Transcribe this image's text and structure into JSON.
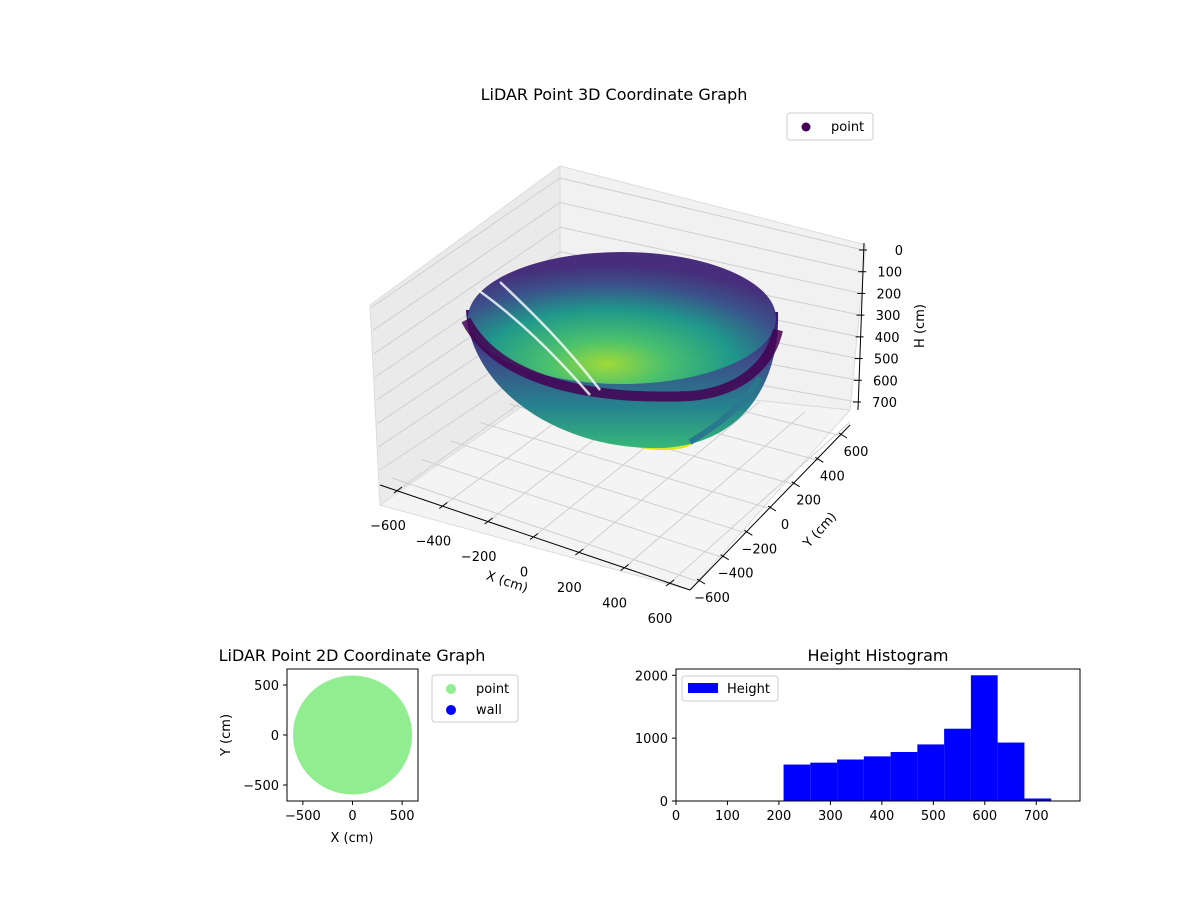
{
  "chart_data": [
    {
      "type": "scatter",
      "title": "LiDAR Point 3D Coordinate Graph",
      "projection": "3d",
      "xlabel": "X (cm)",
      "ylabel": "Y (cm)",
      "zlabel": "H (cm)",
      "x_ticks": [
        "−600",
        "−400",
        "−200",
        "0",
        "200",
        "400",
        "600"
      ],
      "y_ticks": [
        "600",
        "400",
        "200",
        "0",
        "−200",
        "−400",
        "−600"
      ],
      "z_ticks": [
        "0",
        "100",
        "200",
        "300",
        "400",
        "500",
        "600",
        "700"
      ],
      "xlim": [
        -650,
        650
      ],
      "ylim": [
        -650,
        650
      ],
      "zlim": [
        0,
        750
      ],
      "z_inverted": true,
      "grid": true,
      "legend": {
        "position": "top-right",
        "entries": [
          "point"
        ]
      },
      "colormap": "viridis",
      "series": [
        {
          "name": "point",
          "shape": "hemispherical bowl",
          "radius": 600,
          "max_height": 740,
          "color": "#440154"
        }
      ]
    },
    {
      "type": "scatter",
      "title": "LiDAR Point 2D Coordinate Graph",
      "xlabel": "X (cm)",
      "ylabel": "Y (cm)",
      "x_ticks": [
        "−500",
        "0",
        "500"
      ],
      "y_ticks": [
        "500",
        "0",
        "−500"
      ],
      "xlim": [
        -660,
        660
      ],
      "ylim": [
        -660,
        660
      ],
      "legend": {
        "position": "outside-right",
        "entries": [
          "point",
          "wall"
        ]
      },
      "series": [
        {
          "name": "point",
          "color": "#90ee90",
          "shape": "filled disk",
          "radius": 600
        },
        {
          "name": "wall",
          "color": "#0000ff",
          "values": []
        }
      ]
    },
    {
      "type": "bar",
      "title": "Height Histogram",
      "x_ticks": [
        "0",
        "100",
        "200",
        "300",
        "400",
        "500",
        "600",
        "700"
      ],
      "y_ticks": [
        "0",
        "1000",
        "2000"
      ],
      "xlim": [
        0,
        785
      ],
      "ylim": [
        0,
        2100
      ],
      "legend": {
        "position": "top-left",
        "entries": [
          "Height"
        ]
      },
      "series": [
        {
          "name": "Height",
          "color": "#0000ff",
          "bins": [
            {
              "from": 209,
              "to": 261,
              "value": 580
            },
            {
              "from": 261,
              "to": 313,
              "value": 610
            },
            {
              "from": 313,
              "to": 365,
              "value": 660
            },
            {
              "from": 365,
              "to": 417,
              "value": 710
            },
            {
              "from": 417,
              "to": 469,
              "value": 780
            },
            {
              "from": 469,
              "to": 521,
              "value": 900
            },
            {
              "from": 521,
              "to": 573,
              "value": 1150
            },
            {
              "from": 573,
              "to": 625,
              "value": 2000
            },
            {
              "from": 625,
              "to": 677,
              "value": 930
            },
            {
              "from": 677,
              "to": 729,
              "value": 40
            }
          ]
        }
      ]
    }
  ]
}
